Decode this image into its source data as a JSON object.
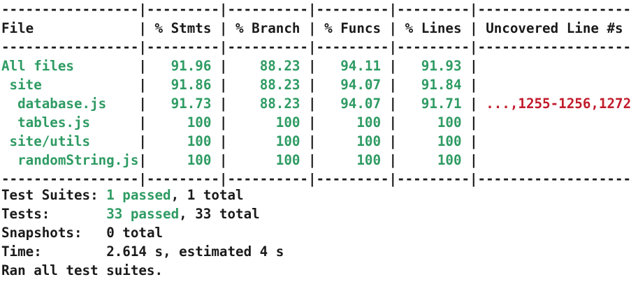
{
  "coverage_table": {
    "columns": {
      "file": "File",
      "stmts": "% Stmts",
      "branch": "% Branch",
      "funcs": "% Funcs",
      "lines": "% Lines",
      "uncovered": "Uncovered Line #s"
    },
    "rows": [
      {
        "file": "All files",
        "indent": "",
        "stmts": "91.96",
        "branch": "88.23",
        "funcs": "94.11",
        "lines": "91.93",
        "uncovered": ""
      },
      {
        "file": "site",
        "indent": " ",
        "stmts": "91.86",
        "branch": "88.23",
        "funcs": "94.07",
        "lines": "91.84",
        "uncovered": ""
      },
      {
        "file": "database.js",
        "indent": "  ",
        "stmts": "91.73",
        "branch": "88.23",
        "funcs": "94.07",
        "lines": "91.71",
        "uncovered": "...,1255-1256,1272"
      },
      {
        "file": "tables.js",
        "indent": "  ",
        "stmts": "100",
        "branch": "100",
        "funcs": "100",
        "lines": "100",
        "uncovered": ""
      },
      {
        "file": "site/utils",
        "indent": " ",
        "stmts": "100",
        "branch": "100",
        "funcs": "100",
        "lines": "100",
        "uncovered": ""
      },
      {
        "file": "randomString.js",
        "indent": "  ",
        "stmts": "100",
        "branch": "100",
        "funcs": "100",
        "lines": "100",
        "uncovered": ""
      }
    ]
  },
  "summary": {
    "suites_label": "Test Suites: ",
    "suites_passed": "1 passed",
    "suites_total": ", 1 total",
    "tests_label": "Tests:       ",
    "tests_passed": "33 passed",
    "tests_total": ", 33 total",
    "snapshots_label": "Snapshots:   ",
    "snapshots_value": "0 total",
    "time_label": "Time:        ",
    "time_value": "2.614 s, estimated 4 s",
    "ran_all": "Ran all test suites."
  },
  "colors": {
    "covered": "#2e9b63",
    "uncovered_lines": "#c21b2c",
    "text": "#1a1a1a",
    "background": "#ffffff"
  }
}
